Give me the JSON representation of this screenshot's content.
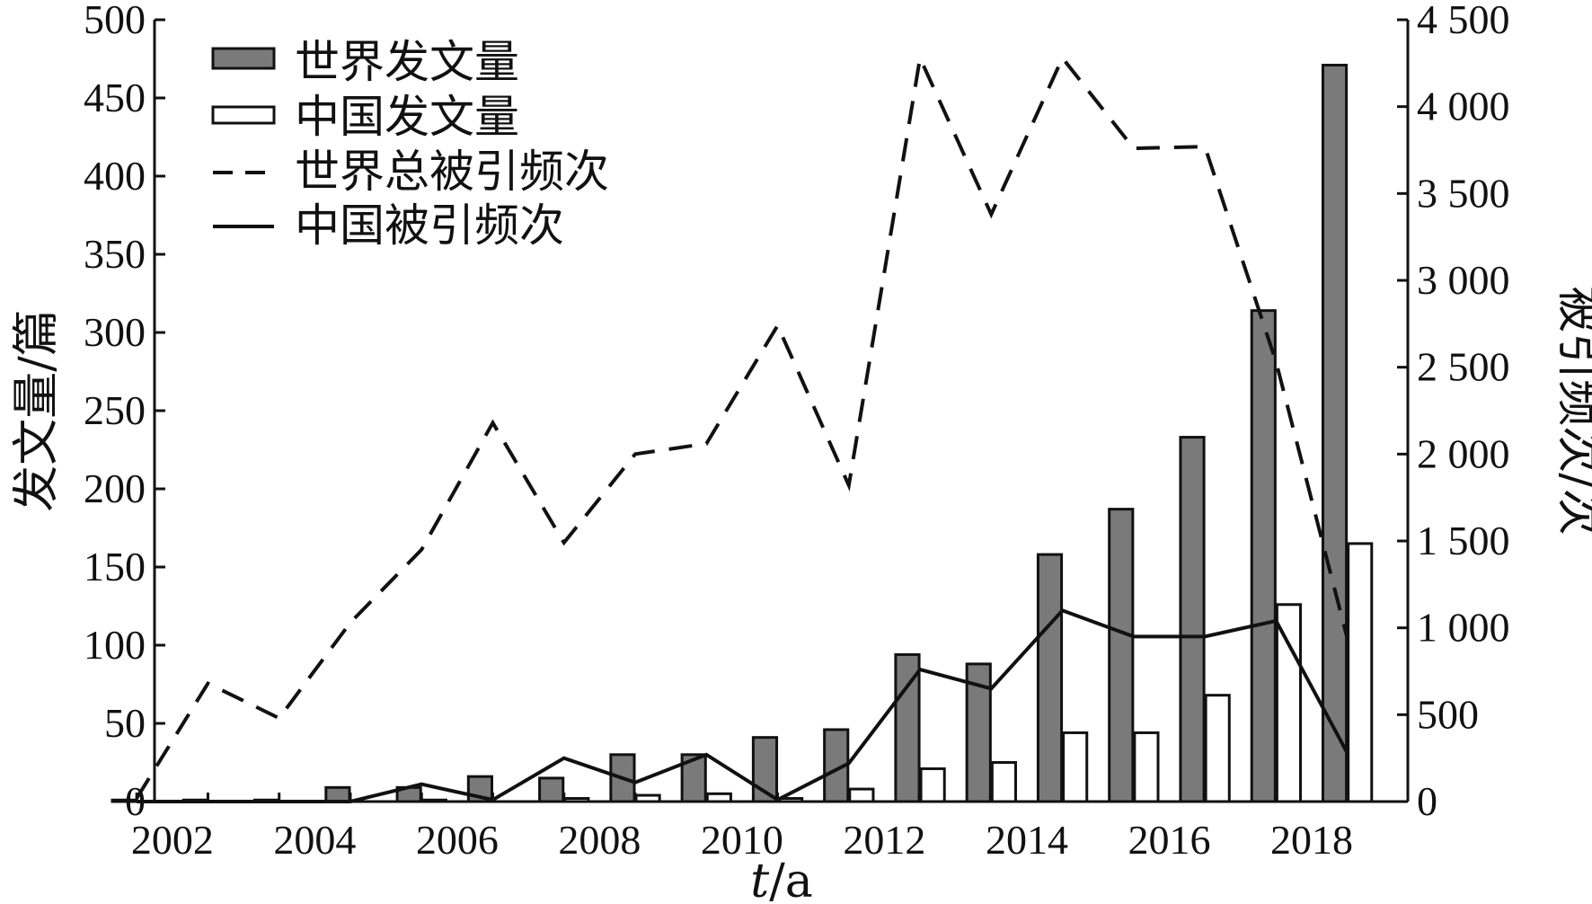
{
  "chart_data": {
    "type": "bar",
    "xlabel_italic": "t",
    "xlabel_rest": "/a",
    "ylabel_left": "发文量/篇",
    "ylabel_right": "被引频次/次",
    "x_tick_labels": [
      "2002",
      "2004",
      "2006",
      "2008",
      "2010",
      "2012",
      "2014",
      "2016",
      "2018"
    ],
    "y_left_ticks": [
      "0",
      "50",
      "100",
      "150",
      "200",
      "250",
      "300",
      "350",
      "400",
      "450",
      "500"
    ],
    "y_right_ticks": [
      "0",
      "500",
      "1 000",
      "1 500",
      "2 000",
      "2 500",
      "3 000",
      "3 500",
      "4 000",
      "4 500"
    ],
    "ylim_left": [
      0,
      500
    ],
    "ylim_right": [
      0,
      4500
    ],
    "years": [
      2001,
      2002,
      2003,
      2004,
      2005,
      2006,
      2007,
      2008,
      2009,
      2010,
      2011,
      2012,
      2013,
      2014,
      2015,
      2016,
      2017,
      2018
    ],
    "legend_position": "top-left",
    "series": [
      {
        "name": "世界发文量",
        "kind": "bar",
        "axis": "left",
        "color": "#7a7a7a",
        "values": [
          1,
          1,
          1,
          9,
          9,
          16,
          15,
          30,
          30,
          41,
          46,
          94,
          88,
          158,
          187,
          233,
          314,
          471
        ]
      },
      {
        "name": "中国发文量",
        "kind": "bar",
        "axis": "left",
        "color": "#ffffff",
        "values": [
          0,
          0,
          0,
          0,
          1,
          0,
          2,
          4,
          5,
          2,
          8,
          21,
          25,
          44,
          44,
          68,
          126,
          165
        ]
      },
      {
        "name": "世界总被引频次",
        "kind": "line",
        "axis": "right",
        "dash": "dashed",
        "values": [
          20,
          680,
          480,
          1030,
          1450,
          2180,
          1490,
          2000,
          2060,
          2740,
          1820,
          4280,
          3380,
          4280,
          3760,
          3770,
          2530,
          940
        ]
      },
      {
        "name": "中国被引频次",
        "kind": "line",
        "axis": "right",
        "dash": "solid",
        "values": [
          0,
          0,
          0,
          0,
          100,
          10,
          250,
          110,
          270,
          10,
          220,
          760,
          650,
          1100,
          950,
          950,
          1040,
          280
        ]
      }
    ]
  }
}
